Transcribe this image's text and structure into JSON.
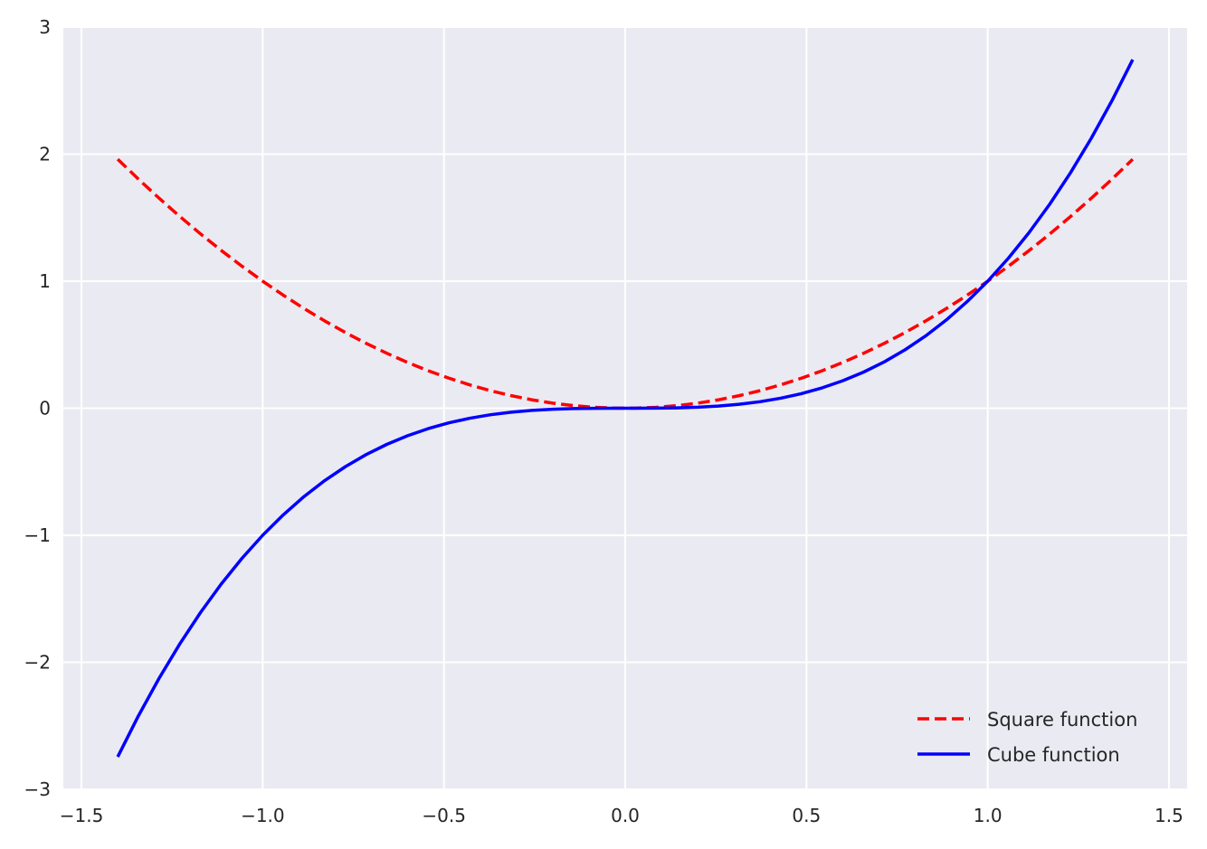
{
  "chart_data": {
    "type": "line",
    "title": "",
    "xlabel": "",
    "ylabel": "",
    "xlim": [
      -1.55,
      1.55
    ],
    "ylim": [
      -3.0,
      3.0
    ],
    "x_ticks": [
      -1.5,
      -1.0,
      -0.5,
      0.0,
      0.5,
      1.0,
      1.5
    ],
    "x_tick_labels": [
      "−1.5",
      "−1.0",
      "−0.5",
      "0.0",
      "0.5",
      "1.0",
      "1.5"
    ],
    "y_ticks": [
      -3,
      -2,
      -1,
      0,
      1,
      2,
      3
    ],
    "y_tick_labels": [
      "−3",
      "−2",
      "−1",
      "0",
      "1",
      "2",
      "3"
    ],
    "x_range": [
      -1.4,
      1.4
    ],
    "grid": true,
    "legend_position": "lower-right",
    "background_color": "#eaeaf2",
    "grid_color": "#ffffff",
    "series": [
      {
        "name": "Square function",
        "function": "x^2",
        "color": "#ff0000",
        "style": "dashed",
        "x": [
          -1.4,
          -1.2,
          -1.0,
          -0.8,
          -0.6,
          -0.4,
          -0.2,
          0.0,
          0.2,
          0.4,
          0.6,
          0.8,
          1.0,
          1.2,
          1.4
        ],
        "y": [
          1.96,
          1.44,
          1.0,
          0.64,
          0.36,
          0.16,
          0.04,
          0.0,
          0.04,
          0.16,
          0.36,
          0.64,
          1.0,
          1.44,
          1.96
        ]
      },
      {
        "name": "Cube function",
        "function": "x^3",
        "color": "#0000ff",
        "style": "solid",
        "x": [
          -1.4,
          -1.2,
          -1.0,
          -0.8,
          -0.6,
          -0.4,
          -0.2,
          0.0,
          0.2,
          0.4,
          0.6,
          0.8,
          1.0,
          1.2,
          1.4
        ],
        "y": [
          -2.744,
          -1.728,
          -1.0,
          -0.512,
          -0.216,
          -0.064,
          -0.008,
          0.0,
          0.008,
          0.064,
          0.216,
          0.512,
          1.0,
          1.728,
          2.744
        ]
      }
    ]
  }
}
